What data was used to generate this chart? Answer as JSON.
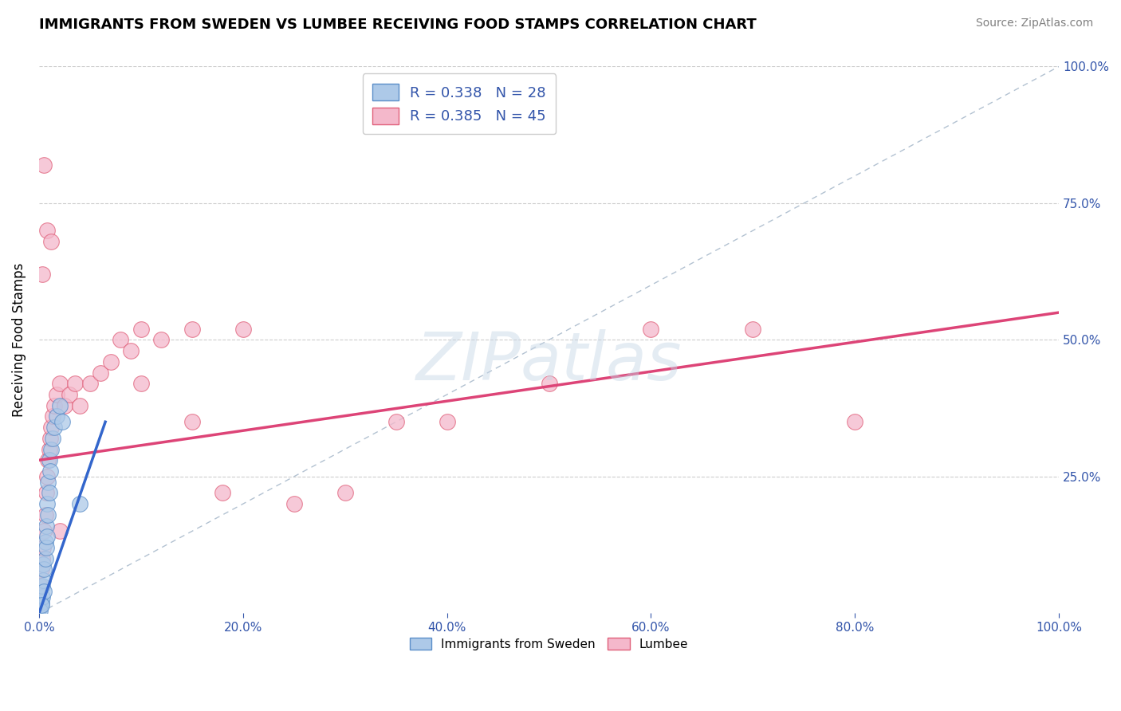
{
  "title": "IMMIGRANTS FROM SWEDEN VS LUMBEE RECEIVING FOOD STAMPS CORRELATION CHART",
  "source": "Source: ZipAtlas.com",
  "ylabel": "Receiving Food Stamps",
  "watermark": "ZIPatlas",
  "xmin": 0.0,
  "xmax": 1.0,
  "ymin": 0.0,
  "ymax": 1.0,
  "legend1_label": "R = 0.338   N = 28",
  "legend2_label": "R = 0.385   N = 45",
  "blue_fill": "#adc9e8",
  "pink_fill": "#f4b8cb",
  "blue_edge": "#5b8ec9",
  "pink_edge": "#e0607a",
  "blue_line_color": "#3366cc",
  "pink_line_color": "#dd4477",
  "diag_color": "#aabbcc",
  "grid_color": "#c8c8c8",
  "blue_scatter_x": [
    0.001,
    0.002,
    0.003,
    0.003,
    0.004,
    0.004,
    0.005,
    0.005,
    0.006,
    0.006,
    0.007,
    0.007,
    0.008,
    0.008,
    0.009,
    0.009,
    0.01,
    0.01,
    0.011,
    0.012,
    0.013,
    0.015,
    0.017,
    0.02,
    0.023,
    0.04,
    0.001,
    0.002
  ],
  "blue_scatter_y": [
    0.01,
    0.02,
    0.03,
    0.05,
    0.06,
    0.09,
    0.04,
    0.08,
    0.1,
    0.13,
    0.12,
    0.16,
    0.14,
    0.2,
    0.18,
    0.24,
    0.22,
    0.28,
    0.26,
    0.3,
    0.32,
    0.34,
    0.36,
    0.38,
    0.35,
    0.2,
    0.005,
    0.015
  ],
  "pink_scatter_x": [
    0.001,
    0.002,
    0.003,
    0.004,
    0.005,
    0.006,
    0.007,
    0.008,
    0.009,
    0.01,
    0.011,
    0.012,
    0.013,
    0.015,
    0.017,
    0.02,
    0.025,
    0.03,
    0.035,
    0.04,
    0.05,
    0.06,
    0.07,
    0.08,
    0.09,
    0.1,
    0.12,
    0.15,
    0.18,
    0.2,
    0.25,
    0.3,
    0.35,
    0.4,
    0.5,
    0.6,
    0.7,
    0.8,
    0.1,
    0.15,
    0.003,
    0.005,
    0.008,
    0.012,
    0.02
  ],
  "pink_scatter_y": [
    0.05,
    0.08,
    0.1,
    0.12,
    0.15,
    0.18,
    0.22,
    0.25,
    0.28,
    0.3,
    0.32,
    0.34,
    0.36,
    0.38,
    0.4,
    0.42,
    0.38,
    0.4,
    0.42,
    0.38,
    0.42,
    0.44,
    0.46,
    0.5,
    0.48,
    0.42,
    0.5,
    0.52,
    0.22,
    0.52,
    0.2,
    0.22,
    0.35,
    0.35,
    0.42,
    0.52,
    0.52,
    0.35,
    0.52,
    0.35,
    0.62,
    0.82,
    0.7,
    0.68,
    0.15
  ],
  "blue_trend_x0": 0.0,
  "blue_trend_y0": 0.0,
  "blue_trend_x1": 0.065,
  "blue_trend_y1": 0.35,
  "pink_trend_x0": 0.0,
  "pink_trend_y0": 0.28,
  "pink_trend_x1": 1.0,
  "pink_trend_y1": 0.55
}
